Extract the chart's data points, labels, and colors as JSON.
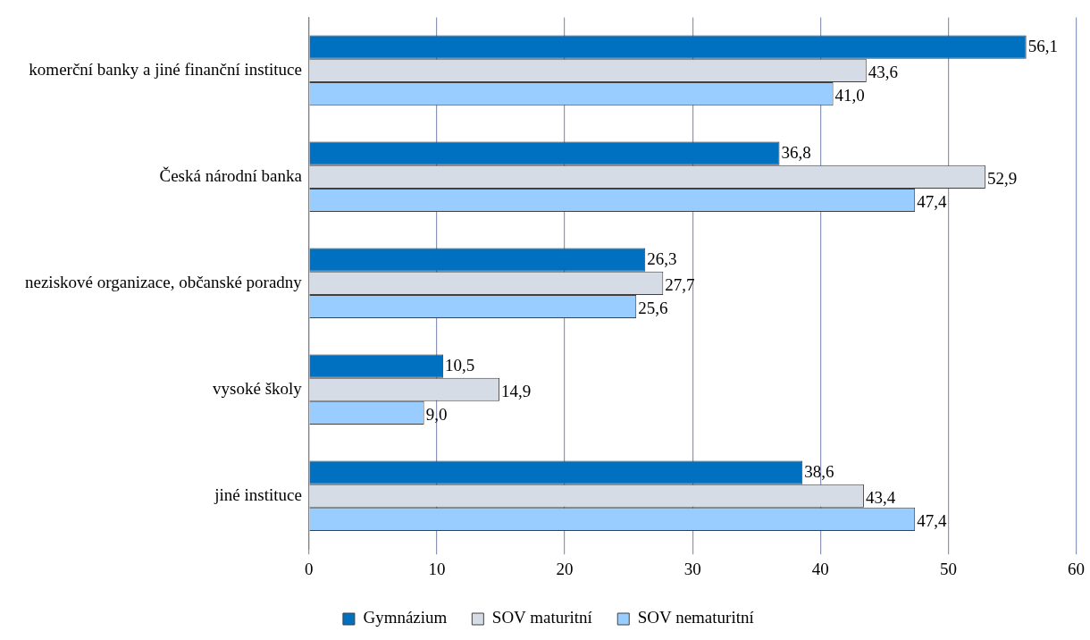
{
  "chart_data": {
    "type": "bar",
    "orientation": "horizontal",
    "categories": [
      "komerční banky a jiné finanční instituce",
      "Česká národní banka",
      "neziskové organizace, občanské poradny",
      "vysoké školy",
      "jiné instituce"
    ],
    "series": [
      {
        "name": "Gymnázium",
        "color": "#0070c0",
        "values": [
          56.1,
          36.8,
          26.3,
          10.5,
          38.6
        ],
        "value_labels": [
          "56,1",
          "36,8",
          "26,3",
          "10,5",
          "38,6"
        ]
      },
      {
        "name": "SOV maturitní",
        "color": "#d6dce5",
        "values": [
          43.6,
          52.9,
          27.7,
          14.9,
          43.4
        ],
        "value_labels": [
          "43,6",
          "52,9",
          "27,7",
          "14,9",
          "43,4"
        ]
      },
      {
        "name": "SOV nematuritní",
        "color": "#99ccff",
        "values": [
          41.0,
          47.4,
          25.6,
          9.0,
          47.4
        ],
        "value_labels": [
          "41,0",
          "47,4",
          "25,6",
          "9,0",
          "47,4"
        ]
      }
    ],
    "xlim": [
      0,
      60
    ],
    "xticks": [
      0,
      10,
      20,
      30,
      40,
      50,
      60
    ],
    "grid": "x",
    "legend": "bottom"
  }
}
